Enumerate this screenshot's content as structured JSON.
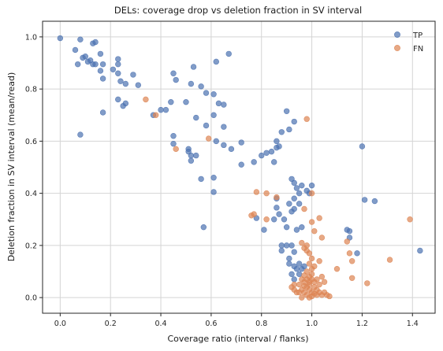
{
  "chart_data": {
    "type": "scatter",
    "title": "DELs: coverage drop vs deletion fraction in SV interval",
    "xlabel": "Coverage ratio (interval / flanks)",
    "ylabel": "Deletion fraction in SV interval (mean/read)",
    "xlim": [
      -0.07,
      1.49
    ],
    "ylim": [
      -0.06,
      1.06
    ],
    "xticks": [
      0.0,
      0.2,
      0.4,
      0.6,
      0.8,
      1.0,
      1.2,
      1.4
    ],
    "yticks": [
      0.0,
      0.2,
      0.4,
      0.6,
      0.8,
      1.0
    ],
    "xtick_labels": [
      "0.0",
      "0.2",
      "0.4",
      "0.6",
      "0.8",
      "1.0",
      "1.2",
      "1.4"
    ],
    "ytick_labels": [
      "0.0",
      "0.2",
      "0.4",
      "0.6",
      "0.8",
      "1.0"
    ],
    "grid": true,
    "legend_position": "top-right",
    "series": [
      {
        "name": "TP",
        "color": "#4c72b0",
        "points": [
          [
            0.0,
            0.995
          ],
          [
            0.08,
            0.99
          ],
          [
            0.06,
            0.95
          ],
          [
            0.13,
            0.975
          ],
          [
            0.14,
            0.98
          ],
          [
            0.1,
            0.925
          ],
          [
            0.07,
            0.895
          ],
          [
            0.09,
            0.92
          ],
          [
            0.12,
            0.91
          ],
          [
            0.11,
            0.905
          ],
          [
            0.13,
            0.895
          ],
          [
            0.14,
            0.895
          ],
          [
            0.16,
            0.935
          ],
          [
            0.17,
            0.895
          ],
          [
            0.16,
            0.87
          ],
          [
            0.17,
            0.84
          ],
          [
            0.08,
            0.625
          ],
          [
            0.17,
            0.71
          ],
          [
            0.21,
            0.875
          ],
          [
            0.23,
            0.915
          ],
          [
            0.23,
            0.895
          ],
          [
            0.23,
            0.86
          ],
          [
            0.24,
            0.83
          ],
          [
            0.26,
            0.82
          ],
          [
            0.29,
            0.855
          ],
          [
            0.31,
            0.815
          ],
          [
            0.23,
            0.76
          ],
          [
            0.25,
            0.735
          ],
          [
            0.26,
            0.745
          ],
          [
            0.37,
            0.7
          ],
          [
            0.4,
            0.72
          ],
          [
            0.42,
            0.72
          ],
          [
            0.44,
            0.75
          ],
          [
            0.45,
            0.86
          ],
          [
            0.46,
            0.835
          ],
          [
            0.5,
            0.75
          ],
          [
            0.52,
            0.82
          ],
          [
            0.53,
            0.885
          ],
          [
            0.56,
            0.81
          ],
          [
            0.58,
            0.785
          ],
          [
            0.61,
            0.78
          ],
          [
            0.62,
            0.905
          ],
          [
            0.67,
            0.935
          ],
          [
            0.54,
            0.69
          ],
          [
            0.58,
            0.66
          ],
          [
            0.61,
            0.7
          ],
          [
            0.63,
            0.745
          ],
          [
            0.65,
            0.74
          ],
          [
            0.65,
            0.655
          ],
          [
            0.62,
            0.6
          ],
          [
            0.65,
            0.585
          ],
          [
            0.68,
            0.57
          ],
          [
            0.72,
            0.595
          ],
          [
            0.45,
            0.62
          ],
          [
            0.45,
            0.59
          ],
          [
            0.51,
            0.57
          ],
          [
            0.51,
            0.56
          ],
          [
            0.52,
            0.545
          ],
          [
            0.52,
            0.525
          ],
          [
            0.54,
            0.545
          ],
          [
            0.56,
            0.455
          ],
          [
            0.57,
            0.27
          ],
          [
            0.61,
            0.405
          ],
          [
            0.61,
            0.46
          ],
          [
            0.72,
            0.51
          ],
          [
            0.77,
            0.52
          ],
          [
            0.8,
            0.545
          ],
          [
            0.82,
            0.555
          ],
          [
            0.84,
            0.56
          ],
          [
            0.86,
            0.575
          ],
          [
            0.85,
            0.52
          ],
          [
            0.87,
            0.58
          ],
          [
            0.86,
            0.6
          ],
          [
            0.88,
            0.635
          ],
          [
            0.9,
            0.715
          ],
          [
            0.91,
            0.645
          ],
          [
            0.93,
            0.675
          ],
          [
            1.2,
            0.58
          ],
          [
            0.92,
            0.455
          ],
          [
            0.94,
            0.42
          ],
          [
            0.93,
            0.44
          ],
          [
            0.95,
            0.4
          ],
          [
            0.96,
            0.43
          ],
          [
            0.98,
            0.41
          ],
          [
            1.0,
            0.43
          ],
          [
            0.99,
            0.4
          ],
          [
            0.93,
            0.38
          ],
          [
            0.91,
            0.36
          ],
          [
            0.92,
            0.33
          ],
          [
            0.93,
            0.34
          ],
          [
            0.86,
            0.38
          ],
          [
            0.86,
            0.345
          ],
          [
            0.87,
            0.32
          ],
          [
            0.85,
            0.3
          ],
          [
            0.89,
            0.3
          ],
          [
            0.9,
            0.27
          ],
          [
            0.94,
            0.26
          ],
          [
            0.96,
            0.27
          ],
          [
            0.95,
            0.36
          ],
          [
            0.78,
            0.305
          ],
          [
            0.81,
            0.26
          ],
          [
            1.21,
            0.375
          ],
          [
            1.25,
            0.37
          ],
          [
            1.14,
            0.26
          ],
          [
            1.15,
            0.255
          ],
          [
            1.15,
            0.23
          ],
          [
            1.18,
            0.17
          ],
          [
            1.43,
            0.18
          ],
          [
            0.88,
            0.2
          ],
          [
            0.88,
            0.18
          ],
          [
            0.9,
            0.2
          ],
          [
            0.91,
            0.15
          ],
          [
            0.92,
            0.2
          ],
          [
            0.93,
            0.175
          ],
          [
            0.91,
            0.13
          ],
          [
            0.92,
            0.09
          ],
          [
            0.93,
            0.12
          ],
          [
            0.94,
            0.11
          ],
          [
            0.95,
            0.13
          ],
          [
            0.96,
            0.11
          ],
          [
            0.97,
            0.12
          ],
          [
            0.95,
            0.09
          ],
          [
            0.93,
            0.07
          ]
        ]
      },
      {
        "name": "FN",
        "color": "#dd8452",
        "points": [
          [
            0.34,
            0.76
          ],
          [
            0.38,
            0.7
          ],
          [
            0.46,
            0.57
          ],
          [
            0.59,
            0.61
          ],
          [
            0.98,
            0.685
          ],
          [
            0.78,
            0.405
          ],
          [
            0.82,
            0.4
          ],
          [
            0.86,
            0.385
          ],
          [
            0.77,
            0.32
          ],
          [
            0.76,
            0.315
          ],
          [
            0.82,
            0.3
          ],
          [
            0.97,
            0.34
          ],
          [
            1.0,
            0.29
          ],
          [
            1.01,
            0.255
          ],
          [
            1.03,
            0.305
          ],
          [
            1.04,
            0.23
          ],
          [
            1.0,
            0.4
          ],
          [
            1.14,
            0.215
          ],
          [
            1.15,
            0.17
          ],
          [
            1.16,
            0.14
          ],
          [
            1.39,
            0.3
          ],
          [
            1.31,
            0.145
          ],
          [
            1.22,
            0.055
          ],
          [
            1.16,
            0.075
          ],
          [
            1.1,
            0.11
          ],
          [
            0.98,
            0.2
          ],
          [
            0.96,
            0.21
          ],
          [
            0.97,
            0.19
          ],
          [
            0.98,
            0.18
          ],
          [
            0.99,
            0.17
          ],
          [
            1.0,
            0.15
          ],
          [
            0.99,
            0.13
          ],
          [
            0.98,
            0.1
          ],
          [
            1.0,
            0.11
          ],
          [
            1.01,
            0.12
          ],
          [
            1.03,
            0.14
          ],
          [
            1.05,
            0.06
          ],
          [
            1.04,
            0.08
          ],
          [
            1.02,
            0.07
          ],
          [
            1.03,
            0.05
          ],
          [
            1.01,
            0.06
          ],
          [
            1.0,
            0.09
          ],
          [
            1.0,
            0.07
          ],
          [
            0.99,
            0.08
          ],
          [
            0.99,
            0.06
          ],
          [
            0.98,
            0.07
          ],
          [
            0.97,
            0.06
          ],
          [
            0.96,
            0.07
          ],
          [
            0.97,
            0.085
          ],
          [
            0.95,
            0.05
          ],
          [
            0.96,
            0.03
          ],
          [
            0.97,
            0.02
          ],
          [
            0.98,
            0.04
          ],
          [
            0.99,
            0.03
          ],
          [
            1.0,
            0.02
          ],
          [
            1.01,
            0.04
          ],
          [
            1.02,
            0.03
          ],
          [
            1.03,
            0.02
          ],
          [
            1.04,
            0.01
          ],
          [
            1.06,
            0.01
          ],
          [
            1.07,
            0.005
          ],
          [
            1.05,
            0.02
          ],
          [
            0.93,
            0.03
          ],
          [
            0.94,
            0.02
          ],
          [
            0.92,
            0.04
          ],
          [
            0.93,
            0.05
          ],
          [
            0.95,
            0.02
          ],
          [
            0.96,
            0.0
          ],
          [
            0.98,
            0.01
          ],
          [
            0.99,
            0.0
          ],
          [
            1.0,
            0.005
          ],
          [
            1.01,
            0.015
          ],
          [
            0.97,
            0.045
          ],
          [
            1.02,
            0.01
          ],
          [
            0.99,
            0.05
          ]
        ]
      }
    ]
  }
}
